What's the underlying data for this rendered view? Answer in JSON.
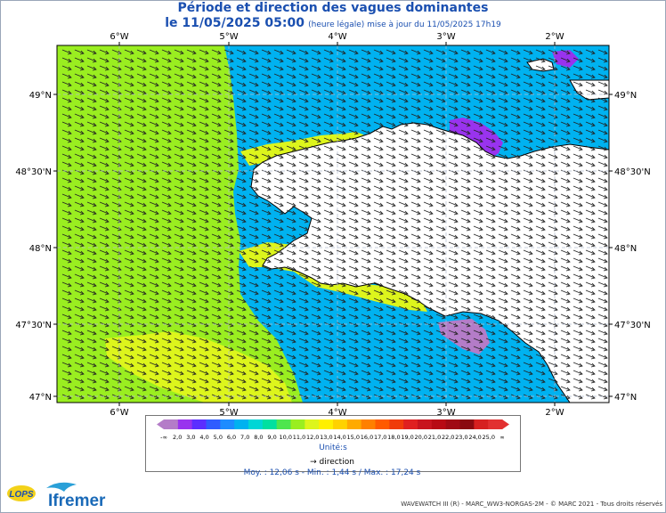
{
  "header": {
    "title": "Période et direction des vagues dominantes",
    "date_line": "le 11/05/2025 05:00",
    "update_note": "(heure légale) mise à jour du 11/05/2025 17h19"
  },
  "map": {
    "lon_ticks": [
      "6°W",
      "5°W",
      "4°W",
      "3°W",
      "2°W"
    ],
    "lat_ticks": [
      "49°N",
      "48°30'N",
      "48°N",
      "47°30'N",
      "47°N"
    ],
    "extent": {
      "lon_min": -6.72,
      "lon_max": -1.52,
      "lat_min": 46.97,
      "lat_max": 49.32
    },
    "colors": {
      "ocean_low_period": "#00b2f0",
      "ocean_high_period": "#9aee20",
      "ocean_mid_period": "#ddf51c",
      "land": "#ffffff",
      "purple_patch": "#9933ee",
      "grid": "#b4bccf"
    }
  },
  "legend": {
    "labels": [
      "-∞",
      "2,0",
      "3,0",
      "4,0",
      "5,0",
      "6,0",
      "7,0",
      "8,0",
      "9,0",
      "10,0",
      "11,0",
      "12,0",
      "13,0",
      "14,0",
      "15,0",
      "16,0",
      "17,0",
      "18,0",
      "19,0",
      "20,0",
      "21,0",
      "22,0",
      "23,0",
      "24,0",
      "25,0",
      "∞"
    ],
    "colors": [
      "#b47cc8",
      "#9933ee",
      "#5b2eff",
      "#2f5cff",
      "#1d8cff",
      "#00b2f0",
      "#00d6d6",
      "#00e0a0",
      "#4ee64e",
      "#9aee20",
      "#ddf51c",
      "#fff000",
      "#ffd200",
      "#ffaa00",
      "#ff8000",
      "#ff5a00",
      "#f03c0a",
      "#e02020",
      "#c8141e",
      "#b80a14",
      "#a00a14",
      "#8a0a10",
      "#d62020",
      "#e23030"
    ],
    "units": "Unité:s",
    "direction_label": "direction",
    "stats": "Moy. : 12,06 s   -   Min. : 1,44 s / Max. : 17,24 s"
  },
  "footer": {
    "credits": "WAVEWATCH III (R) - MARC_WW3-NORGAS-2M - © MARC 2021 - Tous droits réservés",
    "logo1": "LOPS",
    "logo2": "Ifremer"
  }
}
